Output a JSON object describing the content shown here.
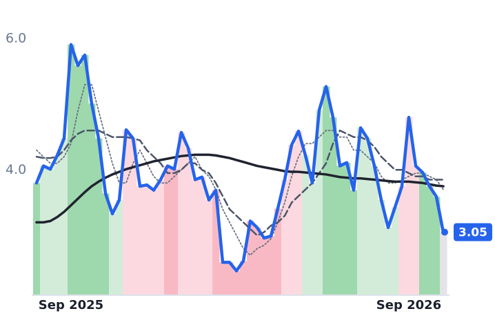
{
  "chart_data": {
    "type": "line",
    "categories": [
      null,
      null,
      null,
      null,
      null,
      "Sep 2025",
      null,
      null,
      null,
      null,
      null,
      null,
      null,
      null,
      null,
      null,
      null,
      null,
      null,
      null,
      null,
      null,
      null,
      null,
      null,
      null,
      null,
      null,
      null,
      null,
      null,
      null,
      null,
      null,
      null,
      null,
      null,
      null,
      null,
      null,
      null,
      null,
      null,
      null,
      null,
      null,
      null,
      null,
      null,
      null,
      null,
      null,
      null,
      null,
      "Sep 2026",
      null,
      null,
      null,
      null,
      null
    ],
    "ylim": [
      2.1,
      6.4
    ],
    "yticks": [
      {
        "value": 4,
        "label": "4.0"
      },
      {
        "value": 6,
        "label": "6.0"
      }
    ],
    "series": [
      {
        "color": "#6b7280",
        "style": "dotted",
        "values": [
          4.3,
          4.2,
          4.1,
          4.1,
          4.2,
          4.4,
          4.9,
          5.3,
          5.3,
          4.9,
          4.5,
          4.1,
          3.8,
          3.8,
          4.1,
          4.3,
          4.1,
          3.9,
          3.8,
          3.8,
          3.9,
          4.0,
          4.1,
          4.2,
          4.0,
          3.9,
          3.7,
          3.4,
          3.2,
          3.0,
          2.8,
          2.7,
          2.8,
          2.85,
          2.95,
          3.2,
          3.5,
          3.9,
          4.2,
          4.4,
          4.4,
          4.5,
          4.6,
          4.6,
          4.5,
          4.5,
          4.3,
          4.3,
          4.2,
          4.1,
          3.9,
          3.8,
          3.8,
          3.85,
          3.9,
          3.95,
          3.95,
          3.9,
          3.85,
          3.7
        ]
      },
      {
        "color": "#4a5568",
        "style": "dashed",
        "values": [
          4.2,
          4.18,
          4.18,
          4.2,
          4.3,
          4.45,
          4.55,
          4.6,
          4.6,
          4.6,
          4.55,
          4.5,
          4.5,
          4.5,
          4.48,
          4.45,
          4.3,
          4.2,
          4.1,
          3.95,
          3.95,
          4.0,
          4.1,
          4.1,
          4.0,
          3.95,
          3.8,
          3.6,
          3.4,
          3.3,
          3.2,
          3.1,
          3.0,
          3.05,
          3.15,
          3.2,
          3.3,
          3.5,
          3.6,
          3.7,
          3.8,
          3.95,
          4.1,
          4.4,
          4.6,
          4.55,
          4.5,
          4.5,
          4.45,
          4.35,
          4.2,
          4.1,
          4.0,
          4.0,
          3.95,
          3.9,
          3.9,
          3.85,
          3.85,
          3.85
        ]
      },
      {
        "color": "#1f2330",
        "style": "solid",
        "width": 3.5,
        "values": [
          3.2,
          3.2,
          3.22,
          3.28,
          3.36,
          3.46,
          3.56,
          3.66,
          3.75,
          3.82,
          3.88,
          3.93,
          3.97,
          4.01,
          4.04,
          4.07,
          4.1,
          4.13,
          4.15,
          4.17,
          4.19,
          4.21,
          4.22,
          4.23,
          4.23,
          4.23,
          4.22,
          4.2,
          4.18,
          4.15,
          4.12,
          4.09,
          4.06,
          4.04,
          4.02,
          4.0,
          3.98,
          3.97,
          3.97,
          3.96,
          3.95,
          3.94,
          3.93,
          3.91,
          3.89,
          3.88,
          3.87,
          3.87,
          3.86,
          3.85,
          3.84,
          3.83,
          3.82,
          3.82,
          3.82,
          3.81,
          3.8,
          3.78,
          3.76,
          3.75
        ]
      },
      {
        "color": "#2563eb",
        "style": "solid",
        "width": 4.5,
        "values": [
          3.8,
          4.06,
          4.01,
          4.22,
          4.48,
          5.91,
          5.59,
          5.75,
          5.01,
          4.48,
          3.64,
          3.33,
          3.54,
          4.61,
          4.48,
          3.75,
          3.77,
          3.69,
          3.85,
          4.06,
          4.01,
          4.57,
          4.33,
          3.85,
          3.89,
          3.54,
          3.69,
          2.59,
          2.59,
          2.46,
          2.61,
          3.22,
          3.12,
          2.96,
          2.99,
          3.41,
          3.85,
          4.38,
          4.59,
          4.22,
          3.8,
          4.91,
          5.27,
          4.8,
          4.06,
          4.11,
          3.69,
          4.64,
          4.48,
          4.06,
          3.54,
          3.12,
          3.43,
          3.75,
          4.8,
          4.06,
          3.96,
          3.75,
          3.59,
          3.05
        ],
        "bar_colors": [
          "#9ed8ad",
          "#d3ecd9",
          "#d3ecd9",
          "#d3ecd9",
          "#d3ecd9",
          "#9ed8ad",
          "#9ed8ad",
          "#9ed8ad",
          "#9ed8ad",
          "#9ed8ad",
          "#9ed8ad",
          "#d3ecd9",
          "#d3ecd9",
          "#fcd9e0",
          "#fcd9e0",
          "#fcd9e0",
          "#fcd9e0",
          "#fcd9e0",
          "#fcd9e0",
          "#f8b9c5",
          "#f8b9c5",
          "#fcd9e0",
          "#fcd9e0",
          "#fcd9e0",
          "#fcd9e0",
          "#fcd9e0",
          "#f8b9c5",
          "#f8b9c5",
          "#f8b9c5",
          "#f8b9c5",
          "#f8b9c5",
          "#f8b9c5",
          "#f8b9c5",
          "#f8b9c5",
          "#f8b9c5",
          "#f8b9c5",
          "#fcd9e0",
          "#fcd9e0",
          "#fcd9e0",
          "#d3ecd9",
          "#d3ecd9",
          "#d3ecd9",
          "#9ed8ad",
          "#9ed8ad",
          "#9ed8ad",
          "#9ed8ad",
          "#9ed8ad",
          "#d3ecd9",
          "#d3ecd9",
          "#d3ecd9",
          "#d3ecd9",
          "#d3ecd9",
          "#d3ecd9",
          "#fcd9e0",
          "#fcd9e0",
          "#fcd9e0",
          "#9ed8ad",
          "#9ed8ad",
          "#9ed8ad",
          "#e3e3e8"
        ]
      }
    ]
  }
}
